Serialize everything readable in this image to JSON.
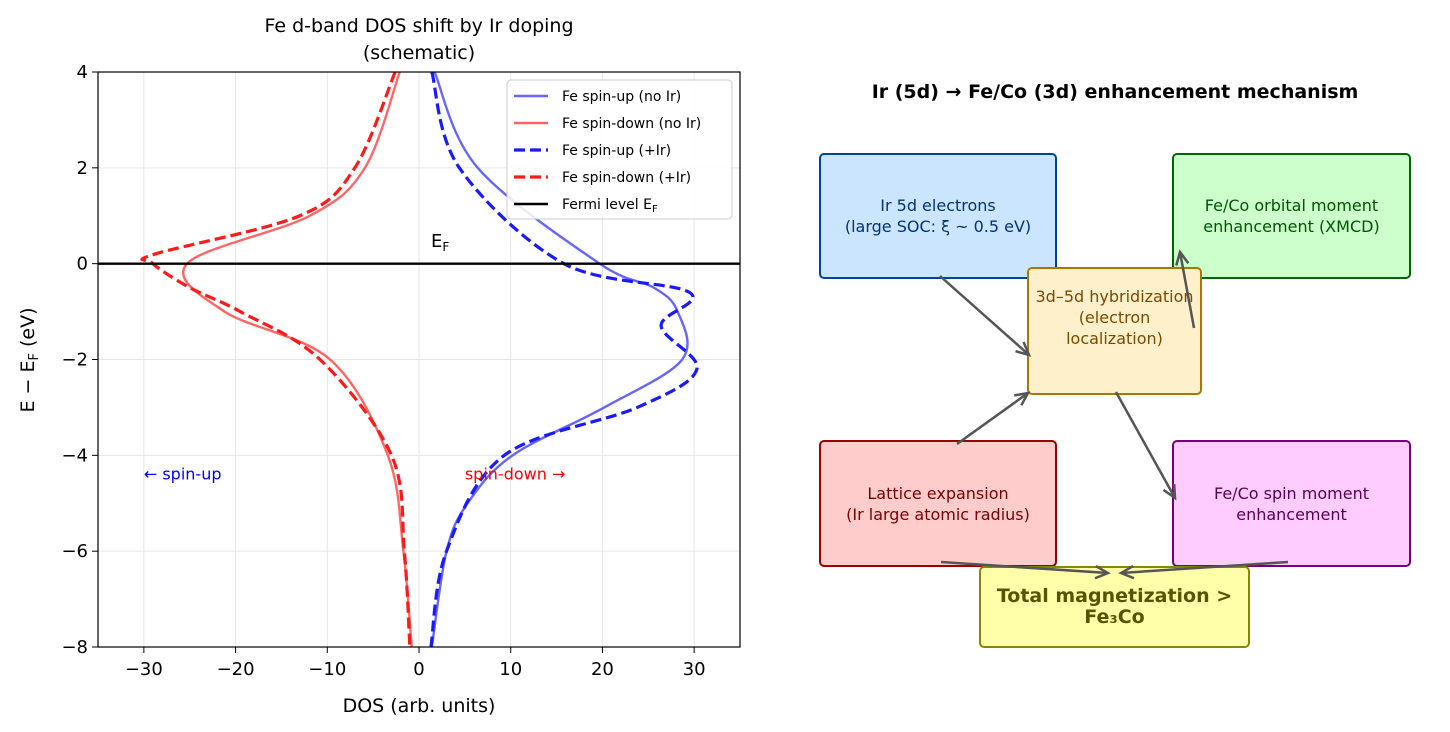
{
  "chart_data": {
    "type": "line",
    "title": "Fe d-band DOS shift by Ir doping\n(schematic)",
    "title_lines": [
      "Fe d-band DOS shift by Ir doping",
      "(schematic)"
    ],
    "xlabel": "DOS (arb. units)",
    "ylabel": "E − E_F (eV)",
    "xlim": [
      -35,
      35
    ],
    "ylim": [
      -8,
      4
    ],
    "xticks": [
      -30,
      -20,
      -10,
      0,
      10,
      20,
      30
    ],
    "xtick_labels": [
      "−30",
      "−20",
      "−10",
      "0",
      "10",
      "20",
      "30"
    ],
    "yticks": [
      -8,
      -6,
      -4,
      -2,
      0,
      2,
      4
    ],
    "ytick_labels": [
      "−8",
      "−6",
      "−4",
      "−2",
      "0",
      "2",
      "4"
    ],
    "grid": true,
    "legend_placement": "top-right",
    "series": [
      {
        "name": "Fe spin-up (no Ir)",
        "color": "#6666ff",
        "style": "solid",
        "x": [
          1.7,
          6.4,
          19.7,
          25.6,
          28.2,
          28.7,
          20.2,
          10.2,
          5.3,
          3.0,
          1.4
        ],
        "y": [
          4,
          2,
          0,
          -0.5,
          -1,
          -2,
          -3,
          -4,
          -5,
          -6,
          -8
        ]
      },
      {
        "name": "Fe spin-down (no Ir)",
        "color": "#ff6666",
        "style": "solid",
        "x": [
          -2.1,
          -5.9,
          -11.9,
          -25.3,
          -21.2,
          -9.7,
          -3.4,
          -1.7,
          -0.8
        ],
        "y": [
          4,
          2,
          1,
          0,
          -1,
          -2,
          -4,
          -6,
          -8
        ]
      },
      {
        "name": "Fe spin-up (+Ir)",
        "color": "#1a1aff",
        "style": "dashed",
        "x": [
          1.4,
          4.4,
          15.8,
          29.5,
          26.4,
          30.3,
          23.8,
          9.3,
          3.0,
          1.3
        ],
        "y": [
          4,
          2,
          0,
          -0.6,
          -1.3,
          -2.2,
          -3,
          -4,
          -6,
          -8
        ]
      },
      {
        "name": "Fe spin-down (+Ir)",
        "color": "#ff1a1a",
        "style": "dashed",
        "x": [
          -2.6,
          -7.0,
          -13.0,
          -28.8,
          -29.0,
          -25.0,
          -19.5,
          -10.8,
          -3.0,
          -1.6,
          -1.0
        ],
        "y": [
          4,
          2,
          1,
          0.2,
          0,
          -0.5,
          -1,
          -2,
          -4,
          -6,
          -8
        ]
      },
      {
        "name": "Fermi level E_F",
        "color": "#000000",
        "style": "solid",
        "x": [
          -35,
          35
        ],
        "y": [
          0,
          0
        ]
      }
    ],
    "annotations": [
      {
        "text": "E_F",
        "x": 2.3,
        "y": 0.35,
        "color": "#000000"
      },
      {
        "text": "← spin-up",
        "x": -30,
        "y": -4.5,
        "color": "#0000ff"
      },
      {
        "text": "spin-down →",
        "x": 5,
        "y": -4.5,
        "color": "#ff0000"
      }
    ]
  },
  "diagram": {
    "title": "Ir (5d) → Fe/Co (3d) enhancement mechanism",
    "boxes": [
      {
        "id": "ir5d",
        "text": "Ir 5d electrons\n(large SOC: ξ ~ 0.5 eV)",
        "fill": "#cce5ff",
        "edge": "#004499",
        "color": "#003377"
      },
      {
        "id": "orbital",
        "text": "Fe/Co orbital moment\nenhancement (XMCD)",
        "fill": "#ccffcc",
        "edge": "#006600",
        "color": "#005500"
      },
      {
        "id": "hybrid",
        "text": "3d–5d hybridization\n(electron localization)",
        "fill": "#fff0cc",
        "edge": "#aa7700",
        "color": "#7a4a00"
      },
      {
        "id": "lattice",
        "text": "Lattice expansion\n(Ir large atomic radius)",
        "fill": "#ffcccc",
        "edge": "#990000",
        "color": "#7a0000"
      },
      {
        "id": "spin",
        "text": "Fe/Co spin moment\nenhancement",
        "fill": "#ffccff",
        "edge": "#770077",
        "color": "#550055"
      },
      {
        "id": "total",
        "text": "Total magnetization > Fe₃Co",
        "fill": "#ffffaa",
        "edge": "#888800",
        "color": "#555500"
      }
    ],
    "arrow_color": "#555555"
  }
}
